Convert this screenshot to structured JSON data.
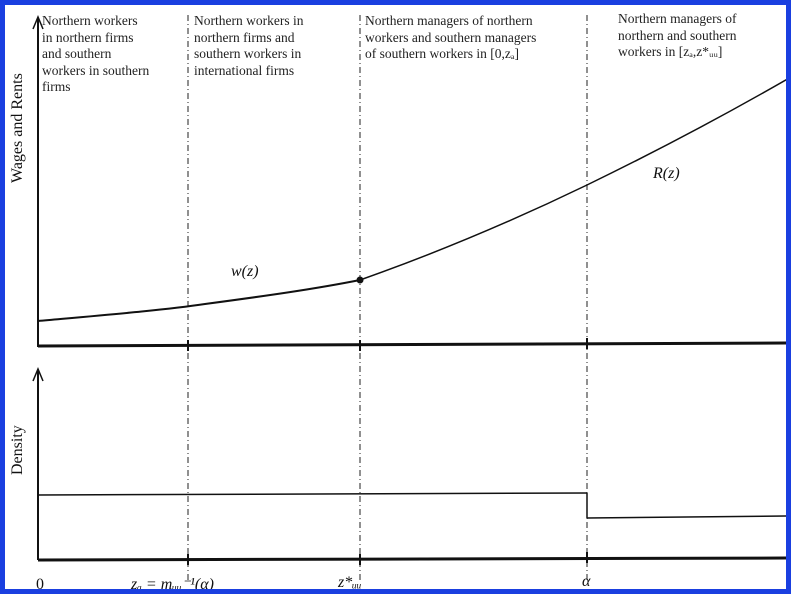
{
  "diagram": {
    "upper_panel": {
      "y_axis_title": "Wages and Rents",
      "curves": [
        {
          "name": "w(z)",
          "label": "w(z)"
        },
        {
          "name": "R(z)",
          "label": "R(z)"
        }
      ]
    },
    "lower_panel": {
      "y_axis_title": "Density"
    },
    "regions": [
      {
        "text": "Northern workers\nin northern firms\nand southern\nworkers in southern\nfirms"
      },
      {
        "text": "Northern workers in\nnorthern firms and\nsouthern workers in\ninternational firms"
      },
      {
        "text": "Northern managers of northern\nworkers and southern managers\nof southern workers in [0,zₐ]"
      },
      {
        "text": "Northern managers of\nnorthern and southern\nworkers in [zₐ,z*ᵤᵤ]"
      }
    ],
    "x_ticks": [
      {
        "label": "0"
      },
      {
        "label": "zₐ = mᵤᵤ⁻¹(α)"
      },
      {
        "label": "z*ᵤᵤ"
      },
      {
        "label": "α"
      }
    ],
    "density_levels": {
      "left_of_alpha": "high",
      "right_of_alpha": "low"
    },
    "colors": {
      "frame": "#1a3fe0",
      "ink": "#111111"
    }
  }
}
